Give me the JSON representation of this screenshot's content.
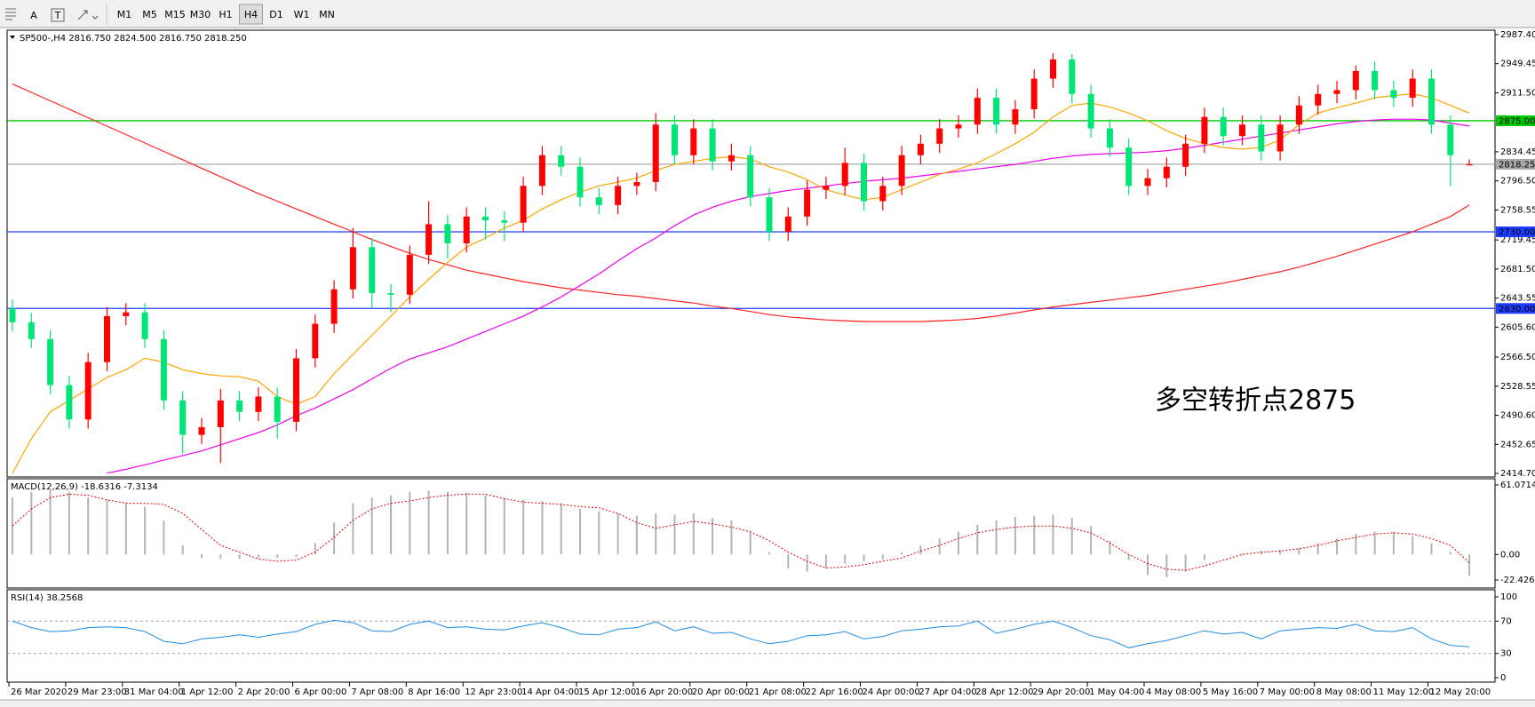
{
  "toolbar": {
    "text_tool": "A",
    "label_tool": "T",
    "timeframes": [
      "M1",
      "M5",
      "M15",
      "M30",
      "H1",
      "H4",
      "D1",
      "W1",
      "MN"
    ],
    "active": "H4"
  },
  "chart_data": [
    {
      "type": "candlestick",
      "title": "SP500-,H4  2816.750 2824.500 2816.750 2818.250",
      "categories": [
        "26 Mar 2020",
        null,
        null,
        "29 Mar 23:00",
        null,
        null,
        "31 Mar 04:00",
        null,
        null,
        "1 Apr 12:00",
        null,
        null,
        "2 Apr 20:00",
        null,
        null,
        "6 Apr 00:00",
        null,
        null,
        "7 Apr 08:00",
        null,
        null,
        "8 Apr 16:00",
        null,
        null,
        "12 Apr 23:00",
        null,
        null,
        "14 Apr 04:00",
        null,
        null,
        "15 Apr 12:00",
        null,
        null,
        "16 Apr 20:00",
        null,
        null,
        "20 Apr 00:00",
        null,
        null,
        "21 Apr 08:00",
        null,
        null,
        "22 Apr 16:00",
        null,
        null,
        "24 Apr 00:00",
        null,
        null,
        "27 Apr 04:00",
        null,
        null,
        "28 Apr 12:00",
        null,
        null,
        "29 Apr 20:00",
        null,
        null,
        "1 May 04:00",
        null,
        null,
        "4 May 08:00",
        null,
        null,
        "5 May 16:00",
        null,
        null,
        "7 May 00:00",
        null,
        null,
        "8 May 08:00",
        null,
        null,
        "11 May 12:00",
        null,
        null,
        "12 May 20:00",
        null,
        null
      ],
      "open": [
        2630,
        2612,
        2590,
        2530,
        2485,
        2560,
        2620,
        2625,
        2590,
        2510,
        2465,
        2475,
        2510,
        2495,
        2515,
        2482,
        2565,
        2610,
        2655,
        2710,
        2650,
        2648,
        2700,
        2740,
        2715,
        2750,
        2745,
        2742,
        2790,
        2830,
        2815,
        2775,
        2765,
        2790,
        2795,
        2870,
        2830,
        2865,
        2822,
        2830,
        2775,
        2730,
        2750,
        2785,
        2790,
        2820,
        2770,
        2790,
        2830,
        2845,
        2865,
        2870,
        2905,
        2870,
        2890,
        2930,
        2955,
        2910,
        2865,
        2840,
        2790,
        2800,
        2815,
        2845,
        2880,
        2855,
        2870,
        2835,
        2870,
        2895,
        2910,
        2915,
        2940,
        2915,
        2905,
        2930,
        2870,
        2816.75
      ],
      "high": [
        2642,
        2624,
        2602,
        2542,
        2572,
        2632,
        2637,
        2637,
        2602,
        2522,
        2487,
        2525,
        2522,
        2527,
        2527,
        2577,
        2622,
        2667,
        2735,
        2722,
        2662,
        2712,
        2770,
        2752,
        2762,
        2762,
        2757,
        2802,
        2842,
        2842,
        2827,
        2787,
        2802,
        2807,
        2885,
        2882,
        2877,
        2877,
        2845,
        2842,
        2787,
        2762,
        2797,
        2802,
        2840,
        2832,
        2802,
        2842,
        2857,
        2877,
        2882,
        2917,
        2917,
        2902,
        2942,
        2963,
        2962,
        2922,
        2877,
        2852,
        2812,
        2827,
        2857,
        2892,
        2892,
        2882,
        2882,
        2882,
        2907,
        2922,
        2927,
        2947,
        2952,
        2927,
        2942,
        2942,
        2882,
        2824.5
      ],
      "low": [
        2600,
        2578,
        2518,
        2473,
        2473,
        2548,
        2608,
        2578,
        2498,
        2440,
        2453,
        2428,
        2483,
        2483,
        2460,
        2470,
        2553,
        2598,
        2643,
        2630,
        2625,
        2636,
        2688,
        2695,
        2703,
        2720,
        2718,
        2730,
        2778,
        2803,
        2763,
        2753,
        2753,
        2778,
        2783,
        2818,
        2818,
        2810,
        2810,
        2763,
        2718,
        2718,
        2738,
        2773,
        2778,
        2758,
        2758,
        2778,
        2818,
        2833,
        2853,
        2858,
        2858,
        2858,
        2878,
        2918,
        2898,
        2853,
        2828,
        2778,
        2778,
        2788,
        2803,
        2833,
        2843,
        2843,
        2823,
        2823,
        2858,
        2883,
        2898,
        2903,
        2903,
        2893,
        2893,
        2858,
        2790,
        2816.75
      ],
      "close": [
        2612,
        2590,
        2530,
        2485,
        2560,
        2620,
        2625,
        2590,
        2510,
        2465,
        2475,
        2510,
        2495,
        2515,
        2482,
        2565,
        2610,
        2655,
        2710,
        2650,
        2648,
        2700,
        2740,
        2715,
        2750,
        2745,
        2742,
        2790,
        2830,
        2815,
        2775,
        2765,
        2790,
        2795,
        2870,
        2830,
        2865,
        2822,
        2830,
        2775,
        2730,
        2750,
        2785,
        2790,
        2820,
        2770,
        2790,
        2830,
        2845,
        2865,
        2870,
        2905,
        2870,
        2890,
        2930,
        2955,
        2910,
        2865,
        2840,
        2790,
        2800,
        2815,
        2845,
        2880,
        2855,
        2870,
        2835,
        2870,
        2895,
        2910,
        2915,
        2940,
        2915,
        2905,
        2930,
        2870,
        2830,
        2818.25
      ],
      "up_color": "#ff0000",
      "down_color": "#00e676",
      "overlays": [
        {
          "color": "#ff2020",
          "values": [
            2923,
            2912,
            2901,
            2890,
            2879,
            2868,
            2857,
            2846,
            2835,
            2824,
            2813,
            2802,
            2791,
            2780,
            2770,
            2760,
            2750,
            2740,
            2730,
            2720,
            2711,
            2702,
            2694,
            2687,
            2680,
            2675,
            2670,
            2665,
            2661,
            2657,
            2654,
            2651,
            2648,
            2646,
            2643,
            2640,
            2637,
            2633,
            2630,
            2626,
            2622,
            2619,
            2617,
            2615,
            2614,
            2613,
            2613,
            2613,
            2613,
            2614,
            2615,
            2617,
            2620,
            2624,
            2628,
            2632,
            2635,
            2638,
            2641,
            2644,
            2647,
            2651,
            2655,
            2659,
            2663,
            2668,
            2673,
            2678,
            2684,
            2691,
            2698,
            2706,
            2714,
            2722,
            2730,
            2740,
            2750,
            2765
          ]
        },
        {
          "color": "#ee00ee",
          "values": [
            null,
            null,
            null,
            null,
            null,
            2415,
            2420,
            2426,
            2432,
            2438,
            2444,
            2452,
            2460,
            2468,
            2478,
            2490,
            2500,
            2512,
            2524,
            2538,
            2552,
            2564,
            2572,
            2580,
            2590,
            2600,
            2610,
            2620,
            2632,
            2645,
            2660,
            2675,
            2692,
            2708,
            2722,
            2738,
            2752,
            2762,
            2770,
            2776,
            2780,
            2784,
            2787,
            2790,
            2793,
            2796,
            2798,
            2800,
            2803,
            2806,
            2809,
            2812,
            2815,
            2818,
            2822,
            2826,
            2829,
            2831,
            2832,
            2833,
            2834,
            2836,
            2839,
            2843,
            2847,
            2851,
            2855,
            2859,
            2863,
            2867,
            2871,
            2874,
            2876,
            2877,
            2877,
            2876,
            2872,
            2868
          ]
        },
        {
          "color": "#ffa500",
          "values": [
            2415,
            2460,
            2495,
            2510,
            2525,
            2540,
            2550,
            2565,
            2560,
            2550,
            2545,
            2542,
            2541,
            2535,
            2515,
            2505,
            2515,
            2545,
            2570,
            2595,
            2620,
            2645,
            2668,
            2690,
            2710,
            2722,
            2735,
            2745,
            2760,
            2772,
            2782,
            2790,
            2795,
            2800,
            2810,
            2818,
            2822,
            2826,
            2828,
            2825,
            2815,
            2808,
            2798,
            2785,
            2778,
            2772,
            2775,
            2785,
            2795,
            2805,
            2812,
            2820,
            2832,
            2845,
            2860,
            2880,
            2895,
            2898,
            2893,
            2885,
            2875,
            2862,
            2852,
            2845,
            2840,
            2838,
            2840,
            2850,
            2870,
            2885,
            2892,
            2898,
            2905,
            2908,
            2910,
            2905,
            2895,
            2885
          ]
        }
      ],
      "ylim": [
        2414.7,
        2987.4
      ],
      "yticks": [
        {
          "value": 2987.4,
          "label": "2987.400"
        },
        {
          "value": 2949.45,
          "label": "2949.450"
        },
        {
          "value": 2911.5,
          "label": "2911.500"
        },
        {
          "value": 2834.45,
          "label": "2834.450"
        },
        {
          "value": 2796.5,
          "label": "2796.500"
        },
        {
          "value": 2758.55,
          "label": "2758.550"
        },
        {
          "value": 2719.45,
          "label": "2719.450"
        },
        {
          "value": 2681.5,
          "label": "2681.500"
        },
        {
          "value": 2643.55,
          "label": "2643.550"
        },
        {
          "value": 2605.6,
          "label": "2605.600"
        },
        {
          "value": 2566.5,
          "label": "2566.500"
        },
        {
          "value": 2528.55,
          "label": "2528.550"
        },
        {
          "value": 2490.6,
          "label": "2490.600"
        },
        {
          "value": 2452.65,
          "label": "2452.650"
        },
        {
          "value": 2414.7,
          "label": "2414.700"
        }
      ],
      "levels": [
        {
          "value": 2875,
          "label": "2875.000",
          "color": "#00c800",
          "text_color": "#ffffff"
        },
        {
          "value": 2818.25,
          "label": "2818.250",
          "color": "#a8a8a8",
          "text_color": "#000000"
        },
        {
          "value": 2730,
          "label": "2730.000",
          "color": "#1e3cff",
          "text_color": "#ffffff"
        },
        {
          "value": 2630,
          "label": "2630.000",
          "color": "#1e3cff",
          "text_color": "#ffffff"
        }
      ],
      "annotation": "多空转折点2875",
      "annotation_color": "#e60000"
    },
    {
      "type": "macd",
      "title": "MACD(12,26,9) -18.6316 -7.3134",
      "histogram": [
        50,
        55,
        58,
        55,
        50,
        48,
        45,
        42,
        30,
        8,
        -3,
        -4,
        -4,
        -3,
        -3,
        -2,
        10,
        28,
        45,
        50,
        52,
        55,
        56,
        55,
        54,
        52,
        50,
        48,
        47,
        45,
        40,
        38,
        36,
        34,
        36,
        35,
        36,
        32,
        30,
        20,
        2,
        -12,
        -15,
        -12,
        -8,
        -6,
        -4,
        2,
        8,
        14,
        20,
        26,
        30,
        33,
        34,
        35,
        32,
        25,
        12,
        -5,
        -18,
        -20,
        -15,
        -5,
        0,
        1,
        3,
        4,
        6,
        10,
        14,
        18,
        20,
        20,
        16,
        10,
        2,
        -18.6316
      ],
      "histogram_color": "#b4b4b4",
      "signal": [
        25,
        40,
        50,
        53,
        52,
        48,
        45,
        45,
        44,
        36,
        22,
        8,
        2,
        -4,
        -6,
        -5,
        2,
        15,
        30,
        40,
        45,
        47,
        50,
        52,
        53,
        53,
        49,
        46,
        45,
        44,
        42,
        41,
        36,
        28,
        23,
        26,
        29,
        27,
        24,
        20,
        12,
        2,
        -6,
        -12,
        -11,
        -9,
        -6,
        -3,
        3,
        8,
        14,
        19,
        22,
        24,
        25,
        25,
        23,
        19,
        10,
        0,
        -8,
        -13,
        -14,
        -10,
        -5,
        0,
        2,
        3,
        5,
        8,
        12,
        15,
        18,
        19,
        18,
        14,
        8,
        -7.3134
      ],
      "signal_color": "#e00000",
      "ylim": [
        -22.4269,
        61.0714
      ],
      "yticks": [
        61.0714,
        {
          "value": 0,
          "label": "0.00"
        },
        -22.4269
      ]
    },
    {
      "type": "line",
      "title": "RSI(14) 38.2568",
      "values": [
        70,
        62,
        57,
        58,
        62,
        63,
        62,
        57,
        45,
        42,
        48,
        50,
        53,
        50,
        54,
        57,
        66,
        71,
        68,
        58,
        57,
        66,
        70,
        62,
        63,
        60,
        59,
        64,
        68,
        62,
        54,
        53,
        60,
        62,
        69,
        58,
        63,
        55,
        56,
        48,
        42,
        45,
        52,
        53,
        57,
        48,
        51,
        58,
        60,
        63,
        64,
        70,
        55,
        60,
        66,
        70,
        62,
        52,
        47,
        37,
        42,
        46,
        52,
        58,
        54,
        56,
        48,
        58,
        60,
        62,
        61,
        66,
        58,
        57,
        62,
        48,
        40,
        38.2568
      ],
      "color": "#1e8ce6",
      "ylim": [
        0,
        100
      ],
      "yticks": [
        100,
        70,
        30,
        0
      ],
      "levels": [
        70,
        30
      ]
    }
  ]
}
